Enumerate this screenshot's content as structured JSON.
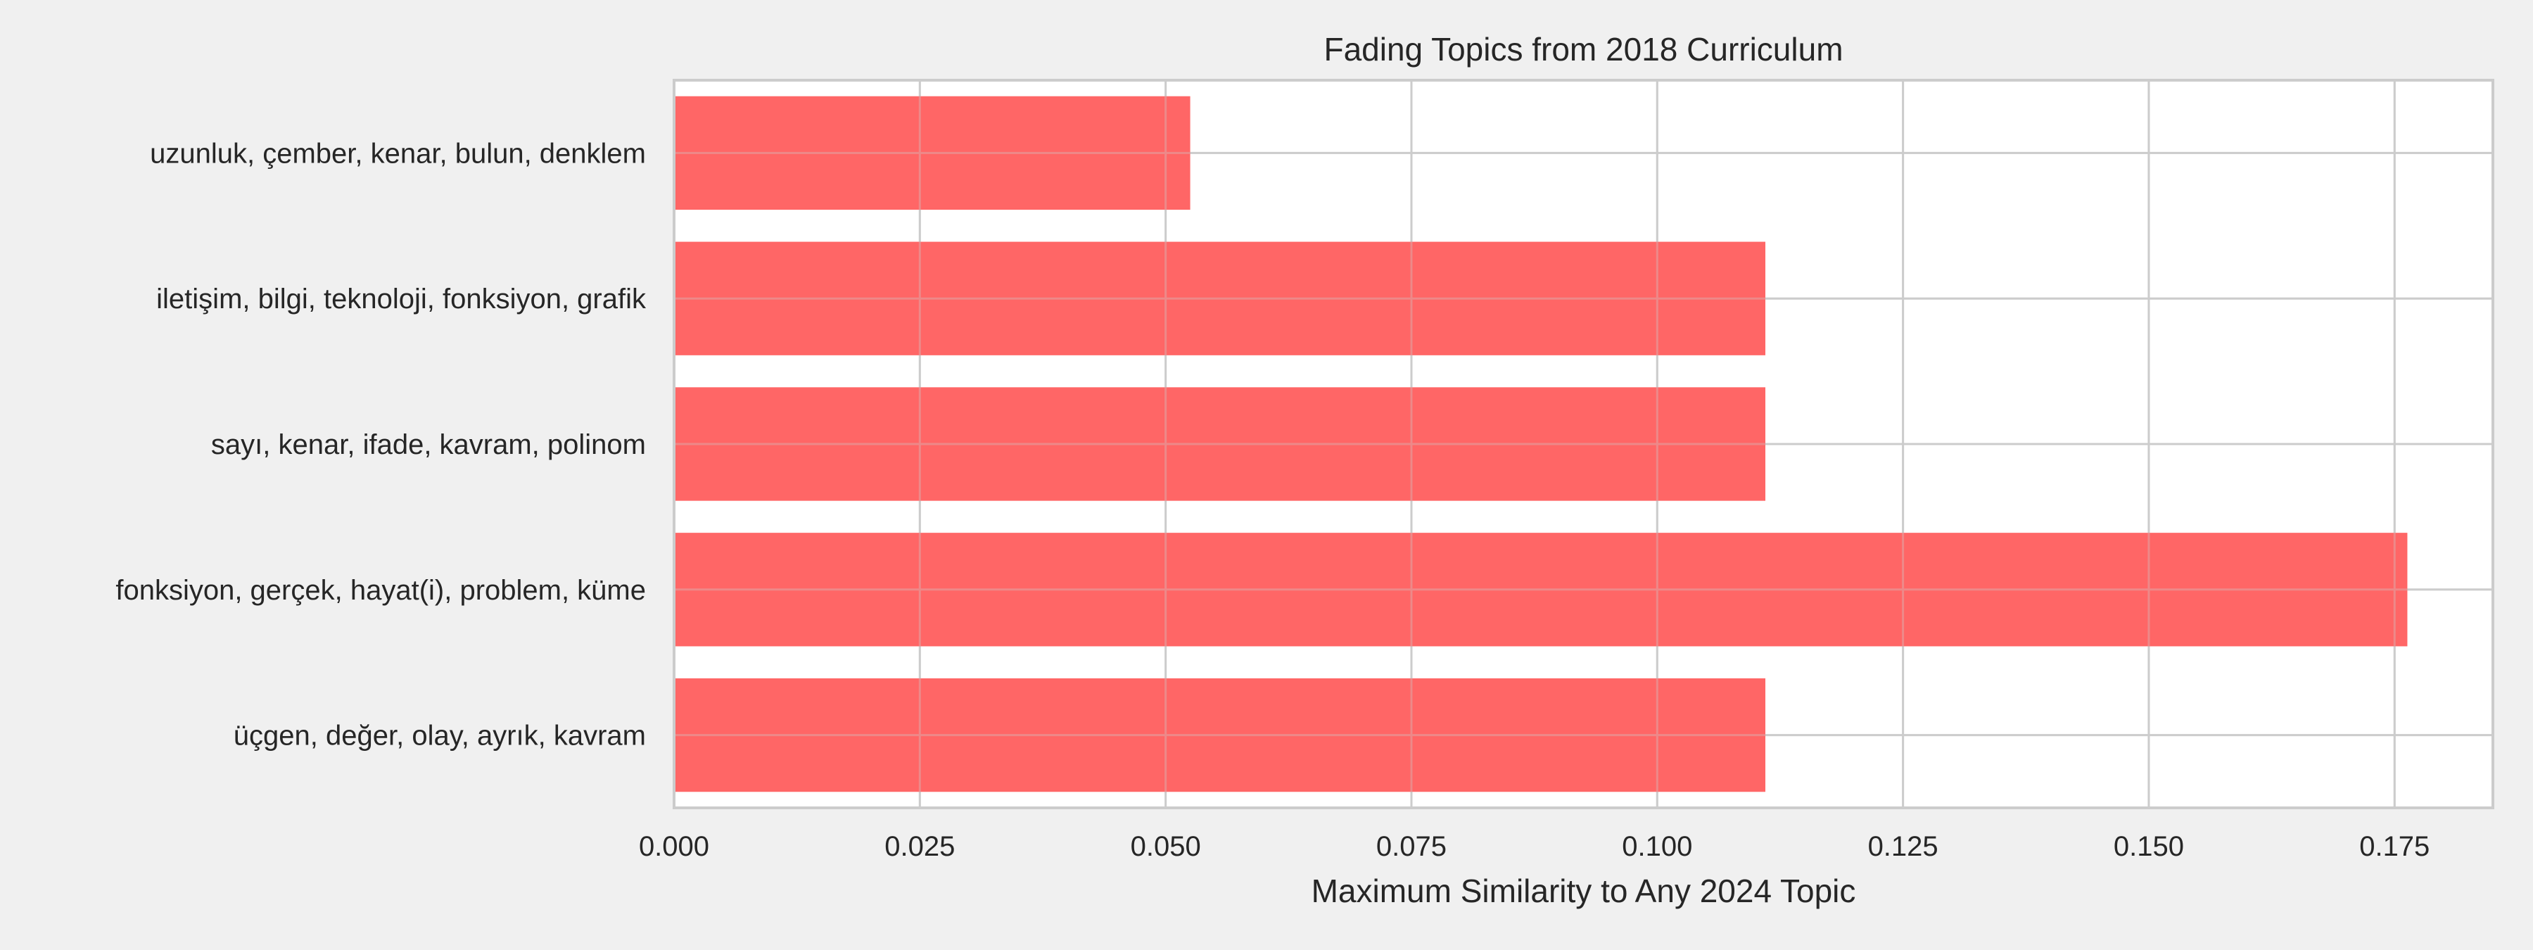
{
  "chart_data": {
    "type": "bar",
    "orientation": "horizontal",
    "title": "Fading Topics from 2018 Curriculum",
    "xlabel": "Maximum Similarity to Any 2024 Topic",
    "ylabel": "",
    "categories": [
      "uzunluk, çember, kenar, bulun, denklem",
      "iletişim, bilgi, teknoloji, fonksiyon, grafik",
      "sayı, kenar, ifade, kavram, polinom",
      "fonksiyon, gerçek, hayat(i), problem, küme",
      "üçgen, değer, olay, ayrık, kavram"
    ],
    "values": [
      0.0525,
      0.111,
      0.111,
      0.1763,
      0.111
    ],
    "xlim": [
      0,
      0.185
    ],
    "xticks": [
      "0.000",
      "0.025",
      "0.050",
      "0.075",
      "0.100",
      "0.125",
      "0.150",
      "0.175"
    ],
    "grid": true,
    "bar_color": "#ff6666",
    "background_color": "#f0f0f0",
    "plot_background_color": "#ffffff",
    "grid_color": "#cccccc"
  }
}
